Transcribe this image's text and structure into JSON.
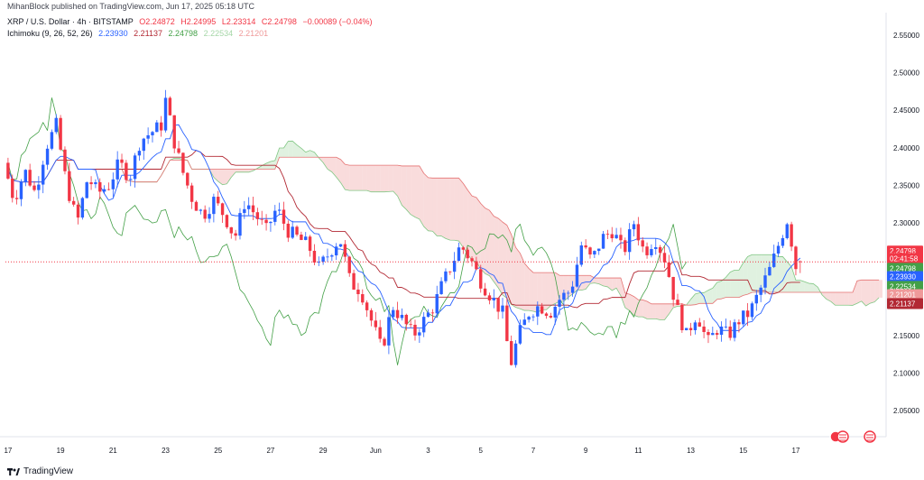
{
  "header": {
    "credit": "MihanBlock published on TradingView.com, Jun 17, 2025 05:18 UTC"
  },
  "legend": {
    "symbol": "XRP / U.S. Dollar · 4h · BITSTAMP",
    "ohlc": [
      "O2.24872",
      "H2.24995",
      "L2.23314",
      "C2.24798",
      "−0.00089 (−0.04%)"
    ],
    "ichimoku_label": "Ichimoku (9, 26, 52, 26)",
    "ichimoku_values": [
      "2.23930",
      "2.21137",
      "2.24798",
      "2.22534",
      "2.21201"
    ]
  },
  "brand": "TradingView",
  "colors": {
    "up": "#2962ff",
    "down": "#f23645",
    "conversion": "#2962ff",
    "base": "#b22833",
    "lagging": "#43a047",
    "cloud_bull": "#a5d6a7",
    "cloud_bear": "#ef9a9a"
  },
  "chart_data": {
    "type": "candlestick",
    "symbol": "XRP / U.S. Dollar",
    "interval": "4h",
    "exchange": "BITSTAMP",
    "ylim": [
      2.02,
      2.58
    ],
    "y_ticks": [
      "2.55000",
      "2.50000",
      "2.45000",
      "2.40000",
      "2.35000",
      "2.30000",
      "2.25000",
      "2.20000",
      "2.15000",
      "2.10000",
      "2.05000"
    ],
    "x_ticks": [
      "17",
      "19",
      "21",
      "23",
      "25",
      "27",
      "29",
      "Jun",
      "3",
      "5",
      "7",
      "9",
      "11",
      "13",
      "15",
      "17"
    ],
    "x_tick_days": [
      0,
      2,
      4,
      6,
      8,
      10,
      12,
      14,
      16,
      18,
      20,
      22,
      24,
      26,
      28,
      30
    ],
    "x_range_days": [
      -0.1,
      33.3
    ],
    "date_start": "May 17, 2025",
    "price_line": 2.248,
    "price_tags": [
      {
        "label": "2.24798",
        "value": 2.2625,
        "color": "#f23645"
      },
      {
        "label": "02:41:58",
        "value": 2.2525,
        "color": "#f23645"
      },
      {
        "label": "2.24798",
        "value": 2.2395,
        "color": "#43a047"
      },
      {
        "label": "2.23930",
        "value": 2.2285,
        "color": "#2962ff"
      },
      {
        "label": "2.22534",
        "value": 2.2155,
        "color": "#43a047"
      },
      {
        "label": "2.21201",
        "value": 2.2045,
        "color": "#ef9a9a"
      },
      {
        "label": "2.21137",
        "value": 2.1925,
        "color": "#b22833"
      }
    ],
    "anchors": [
      [
        0,
        2.38
      ],
      [
        0.4,
        2.33
      ],
      [
        0.8,
        2.37
      ],
      [
        1.2,
        2.34
      ],
      [
        1.6,
        2.4
      ],
      [
        2.0,
        2.43
      ],
      [
        2.4,
        2.35
      ],
      [
        2.8,
        2.3
      ],
      [
        3.2,
        2.36
      ],
      [
        3.6,
        2.34
      ],
      [
        4.0,
        2.35
      ],
      [
        4.4,
        2.38
      ],
      [
        4.8,
        2.36
      ],
      [
        5.2,
        2.41
      ],
      [
        5.6,
        2.42
      ],
      [
        6.0,
        2.43
      ],
      [
        6.2,
        2.47
      ],
      [
        6.4,
        2.42
      ],
      [
        6.8,
        2.37
      ],
      [
        7.2,
        2.33
      ],
      [
        7.6,
        2.31
      ],
      [
        8.0,
        2.33
      ],
      [
        8.4,
        2.31
      ],
      [
        8.8,
        2.28
      ],
      [
        9.2,
        2.33
      ],
      [
        9.6,
        2.31
      ],
      [
        10.0,
        2.29
      ],
      [
        10.4,
        2.32
      ],
      [
        10.8,
        2.29
      ],
      [
        11.2,
        2.28
      ],
      [
        11.6,
        2.27
      ],
      [
        12.0,
        2.24
      ],
      [
        12.4,
        2.26
      ],
      [
        12.8,
        2.28
      ],
      [
        13.2,
        2.22
      ],
      [
        13.6,
        2.21
      ],
      [
        14.0,
        2.17
      ],
      [
        14.4,
        2.13
      ],
      [
        14.8,
        2.19
      ],
      [
        15.2,
        2.17
      ],
      [
        15.6,
        2.15
      ],
      [
        16.0,
        2.17
      ],
      [
        16.4,
        2.19
      ],
      [
        16.6,
        2.21
      ],
      [
        17.0,
        2.24
      ],
      [
        17.4,
        2.27
      ],
      [
        17.8,
        2.25
      ],
      [
        18.2,
        2.22
      ],
      [
        18.6,
        2.2
      ],
      [
        19.0,
        2.18
      ],
      [
        19.3,
        2.11
      ],
      [
        19.6,
        2.15
      ],
      [
        20.0,
        2.18
      ],
      [
        20.4,
        2.19
      ],
      [
        20.8,
        2.18
      ],
      [
        21.2,
        2.2
      ],
      [
        21.6,
        2.21
      ],
      [
        22.0,
        2.27
      ],
      [
        22.4,
        2.25
      ],
      [
        22.8,
        2.28
      ],
      [
        23.2,
        2.29
      ],
      [
        23.6,
        2.26
      ],
      [
        24.0,
        2.3
      ],
      [
        24.4,
        2.26
      ],
      [
        24.8,
        2.28
      ],
      [
        25.2,
        2.25
      ],
      [
        25.6,
        2.19
      ],
      [
        26.0,
        2.15
      ],
      [
        26.4,
        2.18
      ],
      [
        26.8,
        2.14
      ],
      [
        27.2,
        2.16
      ],
      [
        27.6,
        2.15
      ],
      [
        28.0,
        2.17
      ],
      [
        28.4,
        2.18
      ],
      [
        28.8,
        2.21
      ],
      [
        29.2,
        2.24
      ],
      [
        29.6,
        2.28
      ],
      [
        29.9,
        2.31
      ],
      [
        30.1,
        2.24
      ],
      [
        30.3,
        2.245
      ]
    ]
  }
}
